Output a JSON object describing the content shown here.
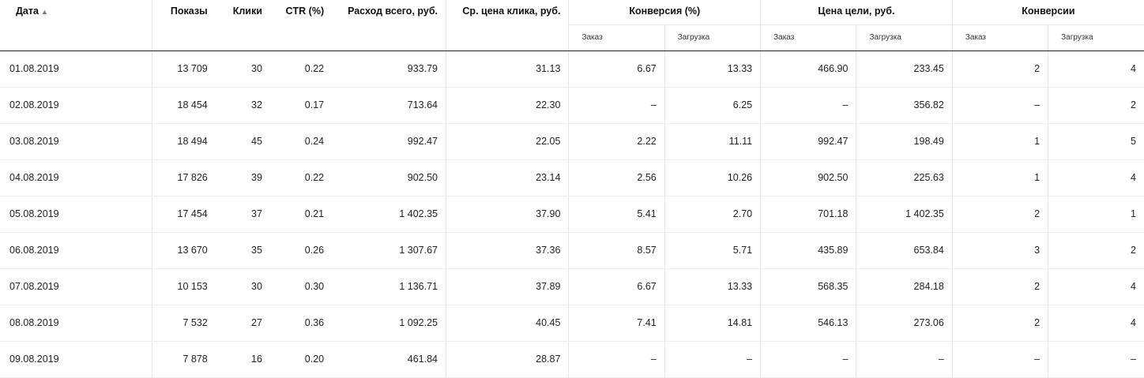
{
  "header": {
    "date": "Дата",
    "sort_indicator": "▲",
    "impressions": "Показы",
    "clicks": "Клики",
    "ctr": "CTR (%)",
    "spend_total": "Расход всего, руб.",
    "avg_click_price": "Ср. цена клика, руб.",
    "conversion_pct": "Конверсия (%)",
    "goal_price": "Цена цели, руб.",
    "conversions": "Конверсии",
    "sub_order": "Заказ",
    "sub_download": "Загрузка"
  },
  "rows": [
    {
      "date": "01.08.2019",
      "impressions": "13 709",
      "clicks": "30",
      "ctr": "0.22",
      "spend": "933.79",
      "cpc": "31.13",
      "conv_order": "6.67",
      "conv_download": "13.33",
      "price_order": "466.90",
      "price_download": "233.45",
      "cnt_order": "2",
      "cnt_download": "4"
    },
    {
      "date": "02.08.2019",
      "impressions": "18 454",
      "clicks": "32",
      "ctr": "0.17",
      "spend": "713.64",
      "cpc": "22.30",
      "conv_order": "–",
      "conv_download": "6.25",
      "price_order": "–",
      "price_download": "356.82",
      "cnt_order": "–",
      "cnt_download": "2"
    },
    {
      "date": "03.08.2019",
      "impressions": "18 494",
      "clicks": "45",
      "ctr": "0.24",
      "spend": "992.47",
      "cpc": "22.05",
      "conv_order": "2.22",
      "conv_download": "11.11",
      "price_order": "992.47",
      "price_download": "198.49",
      "cnt_order": "1",
      "cnt_download": "5"
    },
    {
      "date": "04.08.2019",
      "impressions": "17 826",
      "clicks": "39",
      "ctr": "0.22",
      "spend": "902.50",
      "cpc": "23.14",
      "conv_order": "2.56",
      "conv_download": "10.26",
      "price_order": "902.50",
      "price_download": "225.63",
      "cnt_order": "1",
      "cnt_download": "4"
    },
    {
      "date": "05.08.2019",
      "impressions": "17 454",
      "clicks": "37",
      "ctr": "0.21",
      "spend": "1 402.35",
      "cpc": "37.90",
      "conv_order": "5.41",
      "conv_download": "2.70",
      "price_order": "701.18",
      "price_download": "1 402.35",
      "cnt_order": "2",
      "cnt_download": "1"
    },
    {
      "date": "06.08.2019",
      "impressions": "13 670",
      "clicks": "35",
      "ctr": "0.26",
      "spend": "1 307.67",
      "cpc": "37.36",
      "conv_order": "8.57",
      "conv_download": "5.71",
      "price_order": "435.89",
      "price_download": "653.84",
      "cnt_order": "3",
      "cnt_download": "2"
    },
    {
      "date": "07.08.2019",
      "impressions": "10 153",
      "clicks": "30",
      "ctr": "0.30",
      "spend": "1 136.71",
      "cpc": "37.89",
      "conv_order": "6.67",
      "conv_download": "13.33",
      "price_order": "568.35",
      "price_download": "284.18",
      "cnt_order": "2",
      "cnt_download": "4"
    },
    {
      "date": "08.08.2019",
      "impressions": "7 532",
      "clicks": "27",
      "ctr": "0.36",
      "spend": "1 092.25",
      "cpc": "40.45",
      "conv_order": "7.41",
      "conv_download": "14.81",
      "price_order": "546.13",
      "price_download": "273.06",
      "cnt_order": "2",
      "cnt_download": "4"
    },
    {
      "date": "09.08.2019",
      "impressions": "7 878",
      "clicks": "16",
      "ctr": "0.20",
      "spend": "461.84",
      "cpc": "28.87",
      "conv_order": "–",
      "conv_download": "–",
      "price_order": "–",
      "price_download": "–",
      "cnt_order": "–",
      "cnt_download": "–"
    }
  ]
}
